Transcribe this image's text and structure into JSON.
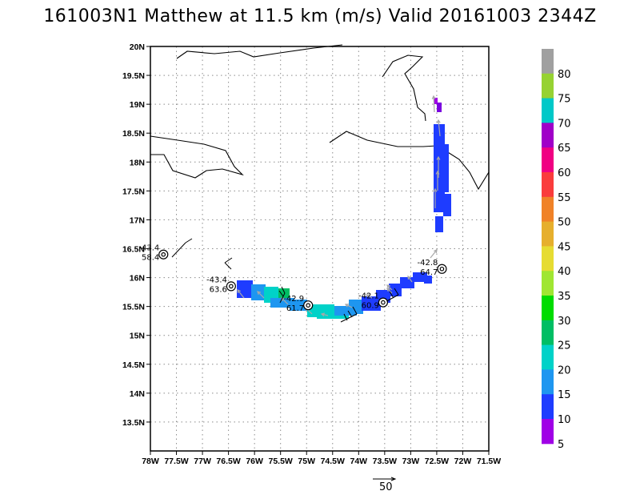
{
  "title": "161003N1 Matthew at 11.5 km (m/s) Valid 20161003 2344Z",
  "map": {
    "lon_range": [
      -78.0,
      -71.5
    ],
    "lat_range": [
      13.0,
      20.0
    ],
    "lat_ticks": [
      "20N",
      "19.5N",
      "19N",
      "18.5N",
      "18N",
      "17.5N",
      "17N",
      "16.5N",
      "16N",
      "15.5N",
      "15N",
      "14.5N",
      "14N",
      "13.5N"
    ],
    "lon_ticks": [
      "78W",
      "77.5W",
      "77W",
      "76.5W",
      "76W",
      "75.5W",
      "75W",
      "74.5W",
      "74W",
      "73.5W",
      "73W",
      "72.5W",
      "72W",
      "71.5W"
    ],
    "grid": true,
    "frame_color": "#000000",
    "grid_color": "#8c8c8c"
  },
  "colorbar": {
    "labels": [
      "80",
      "75",
      "70",
      "65",
      "60",
      "55",
      "50",
      "45",
      "40",
      "35",
      "30",
      "25",
      "20",
      "15",
      "10",
      "5"
    ],
    "colors": [
      "#a0a0a0",
      "#96d232",
      "#00c8c8",
      "#a000c8",
      "#f00082",
      "#fa3c3c",
      "#f08228",
      "#e6af2d",
      "#e6dc32",
      "#a0e632",
      "#00dc00",
      "#00be64",
      "#00d2c8",
      "#1e96f0",
      "#1e3cff",
      "#a000e6"
    ]
  },
  "centers": [
    {
      "lon": -77.75,
      "lat": 16.4,
      "label_top": "-43.4",
      "label_bot": "58.4"
    },
    {
      "lon": -76.45,
      "lat": 15.85,
      "label_top": "-43.4",
      "label_bot": "63.6"
    },
    {
      "lon": -74.97,
      "lat": 15.52,
      "label_top": "-42.9",
      "label_bot": "61.7"
    },
    {
      "lon": -73.53,
      "lat": 15.57,
      "label_top": "-42.1",
      "label_bot": "60.9"
    },
    {
      "lon": -72.4,
      "lat": 16.15,
      "label_top": "-42.8",
      "label_bot": "64.7"
    }
  ],
  "reference_vector": {
    "label": "50"
  }
}
